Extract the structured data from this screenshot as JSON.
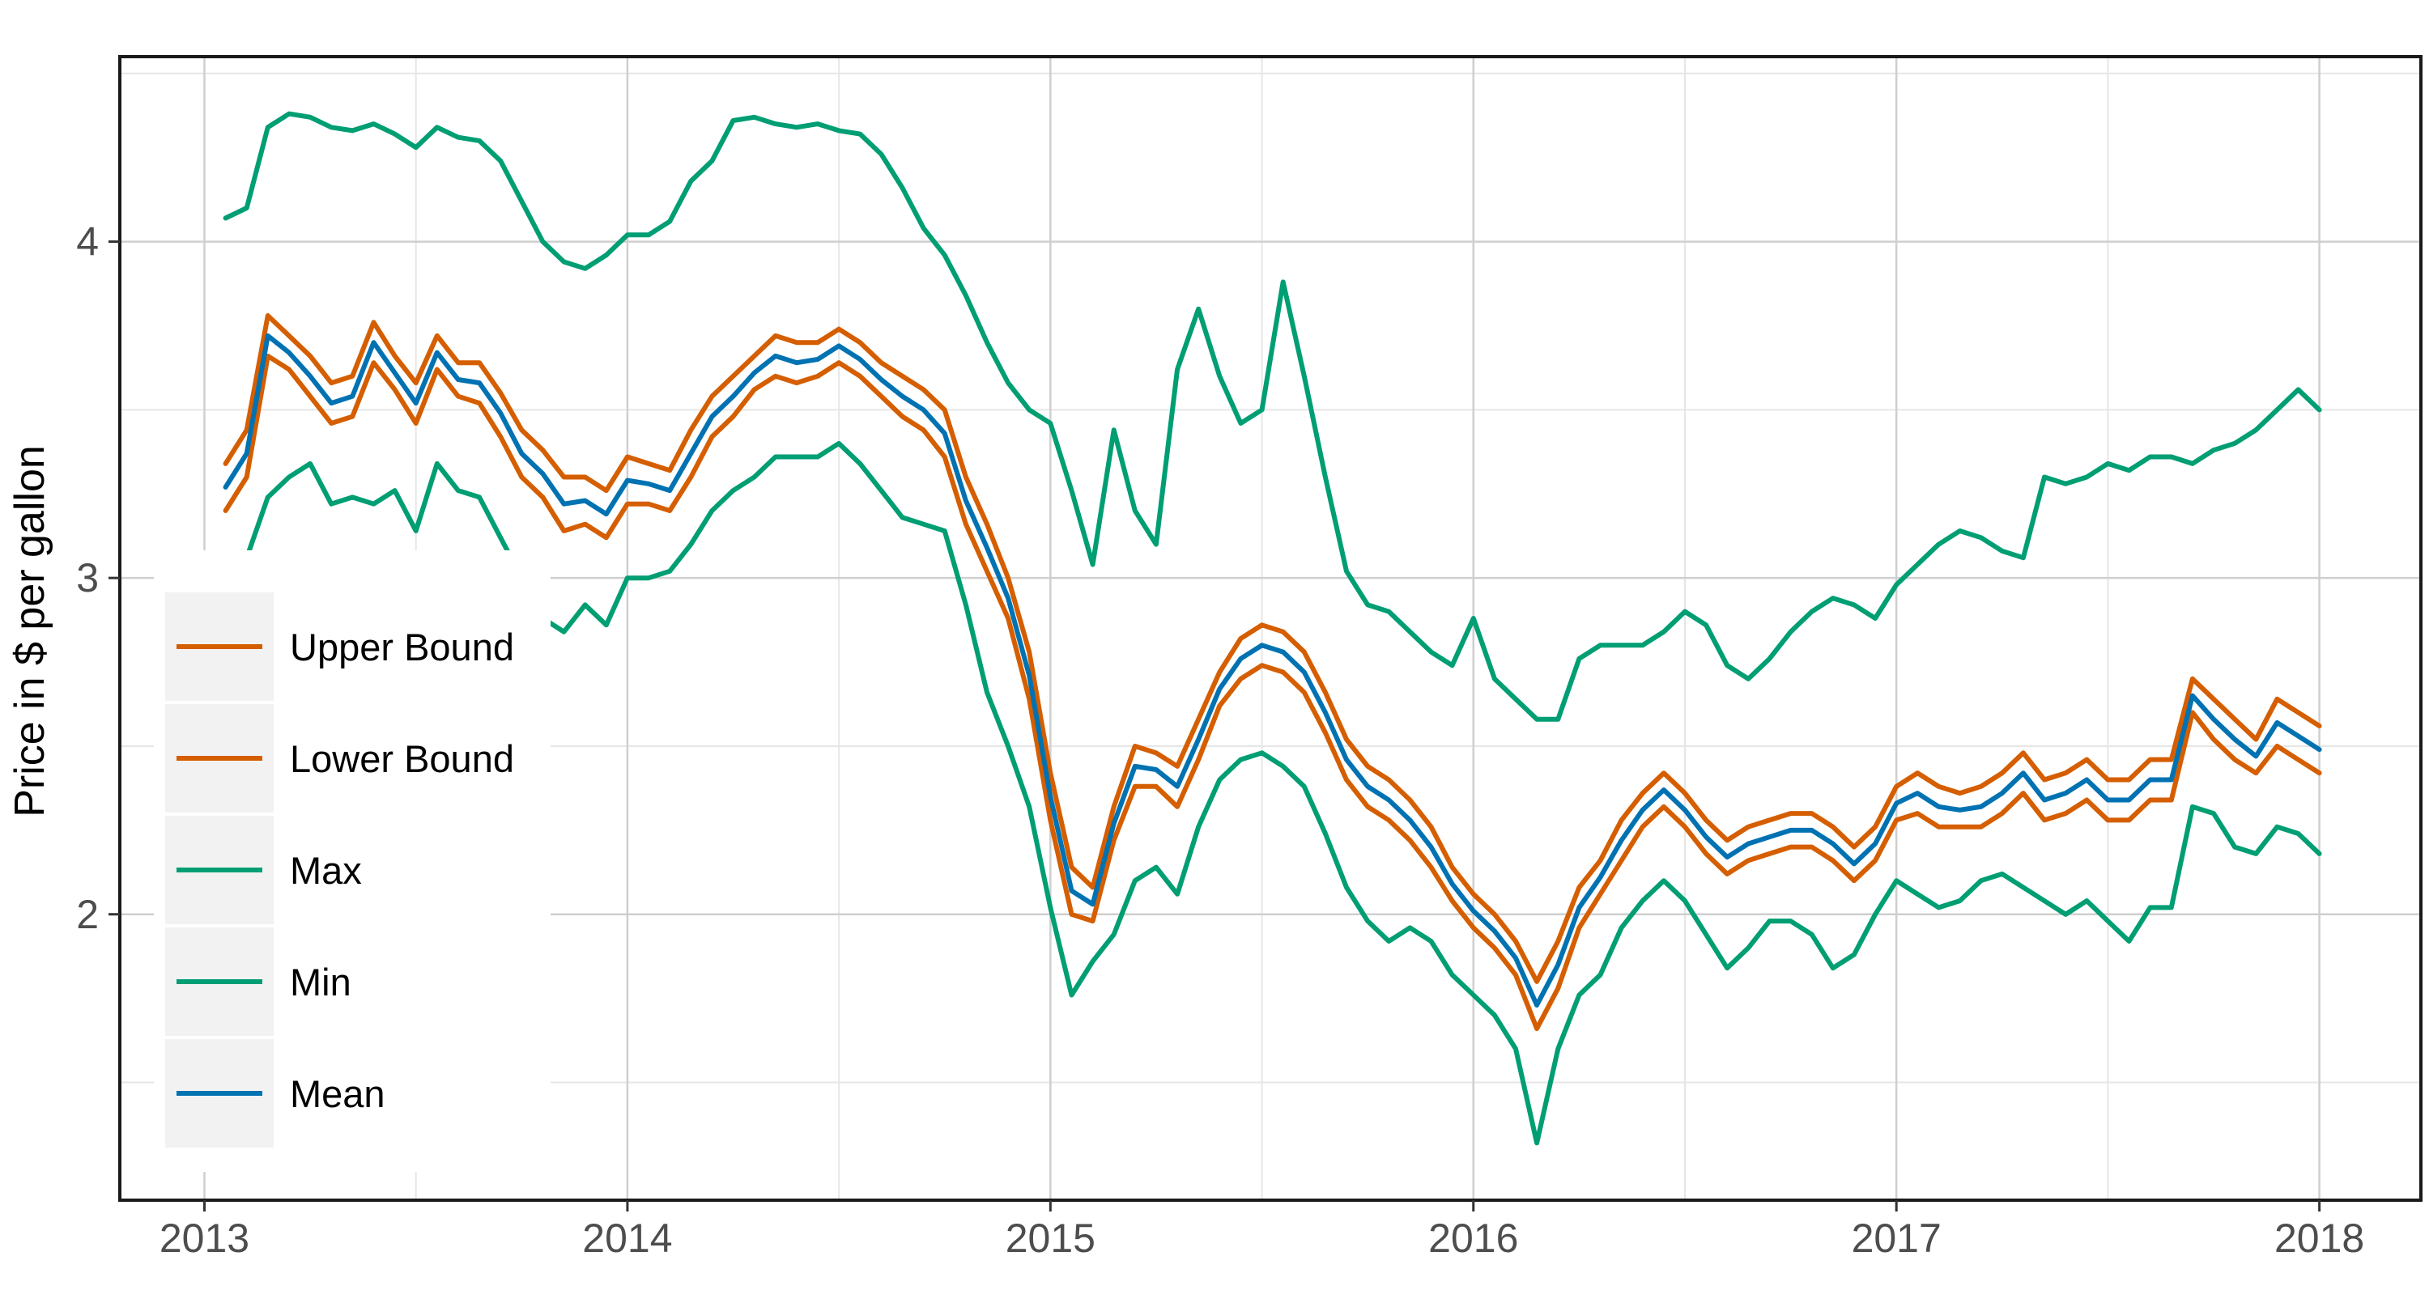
{
  "chart_data": {
    "type": "line",
    "title": "",
    "xlabel": "",
    "ylabel": "Price in $ per gallon",
    "x_ticks": [
      "2013",
      "2014",
      "2015",
      "2016",
      "2017",
      "2018"
    ],
    "y_ticks": [
      "2",
      "3",
      "4"
    ],
    "xlim": [
      2012.8,
      2018.24
    ],
    "ylim": [
      1.15,
      4.55
    ],
    "grid": true,
    "legend_position": "left",
    "x": [
      2013.05,
      2013.1,
      2013.15,
      2013.2,
      2013.25,
      2013.3,
      2013.35,
      2013.4,
      2013.45,
      2013.5,
      2013.55,
      2013.6,
      2013.65,
      2013.7,
      2013.75,
      2013.8,
      2013.85,
      2013.9,
      2013.95,
      2014.0,
      2014.05,
      2014.1,
      2014.15,
      2014.2,
      2014.25,
      2014.3,
      2014.35,
      2014.4,
      2014.45,
      2014.5,
      2014.55,
      2014.6,
      2014.65,
      2014.7,
      2014.75,
      2014.8,
      2014.85,
      2014.9,
      2014.95,
      2015.0,
      2015.05,
      2015.1,
      2015.15,
      2015.2,
      2015.25,
      2015.3,
      2015.35,
      2015.4,
      2015.45,
      2015.5,
      2015.55,
      2015.6,
      2015.65,
      2015.7,
      2015.75,
      2015.8,
      2015.85,
      2015.9,
      2015.95,
      2016.0,
      2016.05,
      2016.1,
      2016.15,
      2016.2,
      2016.25,
      2016.3,
      2016.35,
      2016.4,
      2016.45,
      2016.5,
      2016.55,
      2016.6,
      2016.65,
      2016.7,
      2016.75,
      2016.8,
      2016.85,
      2016.9,
      2016.95,
      2017.0,
      2017.05,
      2017.1,
      2017.15,
      2017.2,
      2017.25,
      2017.3,
      2017.35,
      2017.4,
      2017.45,
      2017.5,
      2017.55,
      2017.6,
      2017.65,
      2017.7,
      2017.75,
      2017.8,
      2017.85,
      2017.9,
      2017.95,
      2018.0
    ],
    "series": [
      {
        "name": "Upper Bound",
        "color": "#D55E00",
        "values": [
          3.34,
          3.44,
          3.78,
          3.72,
          3.66,
          3.58,
          3.6,
          3.76,
          3.66,
          3.58,
          3.72,
          3.64,
          3.64,
          3.55,
          3.44,
          3.38,
          3.3,
          3.3,
          3.26,
          3.36,
          3.34,
          3.32,
          3.44,
          3.54,
          3.6,
          3.66,
          3.72,
          3.7,
          3.7,
          3.74,
          3.7,
          3.64,
          3.6,
          3.56,
          3.5,
          3.3,
          3.16,
          3.0,
          2.78,
          2.42,
          2.14,
          2.08,
          2.32,
          2.5,
          2.48,
          2.44,
          2.58,
          2.72,
          2.82,
          2.86,
          2.84,
          2.78,
          2.66,
          2.52,
          2.44,
          2.4,
          2.34,
          2.26,
          2.14,
          2.06,
          2.0,
          1.92,
          1.8,
          1.92,
          2.08,
          2.16,
          2.28,
          2.36,
          2.42,
          2.36,
          2.28,
          2.22,
          2.26,
          2.28,
          2.3,
          2.3,
          2.26,
          2.2,
          2.26,
          2.38,
          2.42,
          2.38,
          2.36,
          2.38,
          2.42,
          2.48,
          2.4,
          2.42,
          2.46,
          2.4,
          2.4,
          2.46,
          2.46,
          2.7,
          2.64,
          2.58,
          2.52,
          2.64,
          2.6,
          2.56
        ]
      },
      {
        "name": "Lower Bound",
        "color": "#D55E00",
        "values": [
          3.2,
          3.3,
          3.66,
          3.62,
          3.54,
          3.46,
          3.48,
          3.64,
          3.56,
          3.46,
          3.62,
          3.54,
          3.52,
          3.42,
          3.3,
          3.24,
          3.14,
          3.16,
          3.12,
          3.22,
          3.22,
          3.2,
          3.3,
          3.42,
          3.48,
          3.56,
          3.6,
          3.58,
          3.6,
          3.64,
          3.6,
          3.54,
          3.48,
          3.44,
          3.36,
          3.16,
          3.02,
          2.88,
          2.64,
          2.28,
          2.0,
          1.98,
          2.22,
          2.38,
          2.38,
          2.32,
          2.46,
          2.62,
          2.7,
          2.74,
          2.72,
          2.66,
          2.54,
          2.4,
          2.32,
          2.28,
          2.22,
          2.14,
          2.04,
          1.96,
          1.9,
          1.82,
          1.66,
          1.78,
          1.96,
          2.06,
          2.16,
          2.26,
          2.32,
          2.26,
          2.18,
          2.12,
          2.16,
          2.18,
          2.2,
          2.2,
          2.16,
          2.1,
          2.16,
          2.28,
          2.3,
          2.26,
          2.26,
          2.26,
          2.3,
          2.36,
          2.28,
          2.3,
          2.34,
          2.28,
          2.28,
          2.34,
          2.34,
          2.6,
          2.52,
          2.46,
          2.42,
          2.5,
          2.46,
          2.42
        ]
      },
      {
        "name": "Max",
        "color": "#009E73",
        "values": [
          4.07,
          4.1,
          4.34,
          4.38,
          4.37,
          4.34,
          4.33,
          4.35,
          4.32,
          4.28,
          4.34,
          4.31,
          4.3,
          4.24,
          4.12,
          4.0,
          3.94,
          3.92,
          3.96,
          4.02,
          4.02,
          4.06,
          4.18,
          4.24,
          4.36,
          4.37,
          4.35,
          4.34,
          4.35,
          4.33,
          4.32,
          4.26,
          4.16,
          4.04,
          3.96,
          3.84,
          3.7,
          3.58,
          3.5,
          3.46,
          3.26,
          3.04,
          3.44,
          3.2,
          3.1,
          3.62,
          3.8,
          3.6,
          3.46,
          3.5,
          3.88,
          3.6,
          3.3,
          3.02,
          2.92,
          2.9,
          2.84,
          2.78,
          2.74,
          2.88,
          2.7,
          2.64,
          2.58,
          2.58,
          2.76,
          2.8,
          2.8,
          2.8,
          2.84,
          2.9,
          2.86,
          2.74,
          2.7,
          2.76,
          2.84,
          2.9,
          2.94,
          2.92,
          2.88,
          2.98,
          3.04,
          3.1,
          3.14,
          3.12,
          3.08,
          3.06,
          3.3,
          3.28,
          3.3,
          3.34,
          3.32,
          3.36,
          3.36,
          3.34,
          3.38,
          3.4,
          3.44,
          3.5,
          3.56,
          3.5
        ]
      },
      {
        "name": "Min",
        "color": "#009E73",
        "values": [
          2.9,
          3.06,
          3.24,
          3.3,
          3.34,
          3.22,
          3.24,
          3.22,
          3.26,
          3.14,
          3.34,
          3.26,
          3.24,
          3.12,
          3.0,
          2.88,
          2.84,
          2.92,
          2.86,
          3.0,
          3.0,
          3.02,
          3.1,
          3.2,
          3.26,
          3.3,
          3.36,
          3.36,
          3.36,
          3.4,
          3.34,
          3.26,
          3.18,
          3.16,
          3.14,
          2.92,
          2.66,
          2.5,
          2.32,
          2.02,
          1.76,
          1.86,
          1.94,
          2.1,
          2.14,
          2.06,
          2.26,
          2.4,
          2.46,
          2.48,
          2.44,
          2.38,
          2.24,
          2.08,
          1.98,
          1.92,
          1.96,
          1.92,
          1.82,
          1.76,
          1.7,
          1.6,
          1.32,
          1.6,
          1.76,
          1.82,
          1.96,
          2.04,
          2.1,
          2.04,
          1.94,
          1.84,
          1.9,
          1.98,
          1.98,
          1.94,
          1.84,
          1.88,
          2.0,
          2.1,
          2.06,
          2.02,
          2.04,
          2.1,
          2.12,
          2.08,
          2.04,
          2.0,
          2.04,
          1.98,
          1.92,
          2.02,
          2.02,
          2.32,
          2.3,
          2.2,
          2.18,
          2.26,
          2.24,
          2.18
        ]
      },
      {
        "name": "Mean",
        "color": "#0072B2",
        "values": [
          3.27,
          3.37,
          3.72,
          3.67,
          3.6,
          3.52,
          3.54,
          3.7,
          3.61,
          3.52,
          3.67,
          3.59,
          3.58,
          3.49,
          3.37,
          3.31,
          3.22,
          3.23,
          3.19,
          3.29,
          3.28,
          3.26,
          3.37,
          3.48,
          3.54,
          3.61,
          3.66,
          3.64,
          3.65,
          3.69,
          3.65,
          3.59,
          3.54,
          3.5,
          3.43,
          3.23,
          3.09,
          2.94,
          2.71,
          2.35,
          2.07,
          2.03,
          2.27,
          2.44,
          2.43,
          2.38,
          2.52,
          2.67,
          2.76,
          2.8,
          2.78,
          2.72,
          2.6,
          2.46,
          2.38,
          2.34,
          2.28,
          2.2,
          2.09,
          2.01,
          1.95,
          1.87,
          1.73,
          1.85,
          2.02,
          2.11,
          2.22,
          2.31,
          2.37,
          2.31,
          2.23,
          2.17,
          2.21,
          2.23,
          2.25,
          2.25,
          2.21,
          2.15,
          2.21,
          2.33,
          2.36,
          2.32,
          2.31,
          2.32,
          2.36,
          2.42,
          2.34,
          2.36,
          2.4,
          2.34,
          2.34,
          2.4,
          2.4,
          2.65,
          2.58,
          2.52,
          2.47,
          2.57,
          2.53,
          2.49
        ]
      }
    ],
    "legend": [
      {
        "label": "Upper Bound",
        "color": "#D55E00"
      },
      {
        "label": "Lower Bound",
        "color": "#D55E00"
      },
      {
        "label": "Max",
        "color": "#009E73"
      },
      {
        "label": "Min",
        "color": "#009E73"
      },
      {
        "label": "Mean",
        "color": "#0072B2"
      }
    ]
  }
}
